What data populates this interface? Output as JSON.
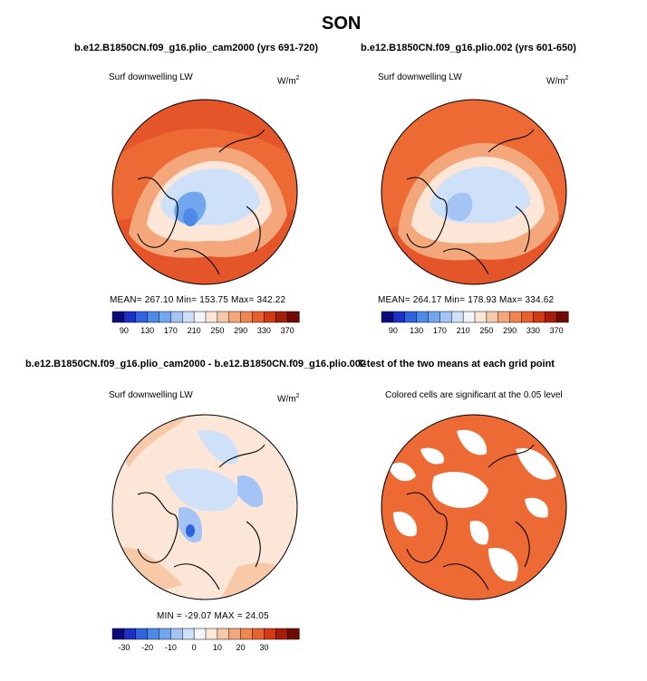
{
  "figure": {
    "title": "SON"
  },
  "panels": {
    "p1": {
      "title": "b.e12.B1850CN.f09_g16.plio_cam2000 (yrs 691-720)",
      "variable": "Surf downwelling LW",
      "units_base": "W/m",
      "units_exp": "2",
      "stats": "MEAN= 267.10   Min= 153.75   Max= 342.22"
    },
    "p2": {
      "title": "b.e12.B1850CN.f09_g16.plio.002 (yrs 601-650)",
      "variable": "Surf downwelling LW",
      "units_base": "W/m",
      "units_exp": "2",
      "stats": "MEAN= 264.17   Min= 178.93   Max= 334.62"
    },
    "p3": {
      "title": "b.e12.B1850CN.f09_g16.plio_cam2000 - b.e12.B1850CN.f09_g16.plio.002",
      "variable": "Surf downwelling LW",
      "units_base": "W/m",
      "units_exp": "2",
      "stats": "MIN = -29.07  MAX =  24.05"
    },
    "p4": {
      "title": "T-test of the two means at each grid point",
      "subtitle": "Colored cells are significant at the 0.05 level"
    }
  },
  "chart_data": [
    {
      "type": "heatmap",
      "projection": "north-polar-stereographic",
      "title": "b.e12.B1850CN.f09_g16.plio_cam2000 (yrs 691-720)",
      "variable": "Surf downwelling LW",
      "units": "W/m2",
      "mean": 267.1,
      "min": 153.75,
      "max": 342.22,
      "colorbar": {
        "levels": [
          90,
          110,
          130,
          150,
          170,
          190,
          210,
          230,
          250,
          270,
          290,
          310,
          330,
          350,
          370
        ],
        "tick_labels": [
          "90",
          "130",
          "170",
          "210",
          "250",
          "290",
          "330",
          "370"
        ],
        "colors": [
          "#0a0a7a",
          "#1c30c8",
          "#2f64de",
          "#4d8ae8",
          "#72a7ef",
          "#a3c4f4",
          "#cfe0f9",
          "#f2f6fc",
          "#fbe6d8",
          "#f8c9a9",
          "#f4a77b",
          "#f08752",
          "#e8602c",
          "#d13a13",
          "#a51d08",
          "#6e0a03"
        ]
      }
    },
    {
      "type": "heatmap",
      "projection": "north-polar-stereographic",
      "title": "b.e12.B1850CN.f09_g16.plio.002 (yrs 601-650)",
      "variable": "Surf downwelling LW",
      "units": "W/m2",
      "mean": 264.17,
      "min": 178.93,
      "max": 334.62,
      "colorbar": {
        "levels": [
          90,
          110,
          130,
          150,
          170,
          190,
          210,
          230,
          250,
          270,
          290,
          310,
          330,
          350,
          370
        ],
        "tick_labels": [
          "90",
          "130",
          "170",
          "210",
          "250",
          "290",
          "330",
          "370"
        ],
        "colors": [
          "#0a0a7a",
          "#1c30c8",
          "#2f64de",
          "#4d8ae8",
          "#72a7ef",
          "#a3c4f4",
          "#cfe0f9",
          "#f2f6fc",
          "#fbe6d8",
          "#f8c9a9",
          "#f4a77b",
          "#f08752",
          "#e8602c",
          "#d13a13",
          "#a51d08",
          "#6e0a03"
        ]
      }
    },
    {
      "type": "heatmap",
      "projection": "north-polar-stereographic",
      "title": "b.e12.B1850CN.f09_g16.plio_cam2000 - b.e12.B1850CN.f09_g16.plio.002",
      "variable": "Surf downwelling LW",
      "units": "W/m2",
      "min": -29.07,
      "max": 24.05,
      "colorbar": {
        "levels": [
          -35,
          -30,
          -25,
          -20,
          -15,
          -10,
          -5,
          0,
          5,
          10,
          15,
          20,
          25,
          30,
          35
        ],
        "tick_labels": [
          "-30",
          "-20",
          "-10",
          "0",
          "10",
          "20",
          "30"
        ],
        "colors": [
          "#0a0a7a",
          "#1c30c8",
          "#2f64de",
          "#4d8ae8",
          "#72a7ef",
          "#a3c4f4",
          "#cfe0f9",
          "#f2f6fc",
          "#fbe6d8",
          "#f8c9a9",
          "#f4a77b",
          "#f08752",
          "#e8602c",
          "#d13a13",
          "#a51d08",
          "#6e0a03"
        ]
      }
    },
    {
      "type": "heatmap",
      "projection": "north-polar-stereographic",
      "title": "T-test of the two means at each grid point",
      "subtitle": "Colored cells are significant at the 0.05 level",
      "significance_level": 0.05,
      "fill_color": "#ee6a35"
    }
  ]
}
